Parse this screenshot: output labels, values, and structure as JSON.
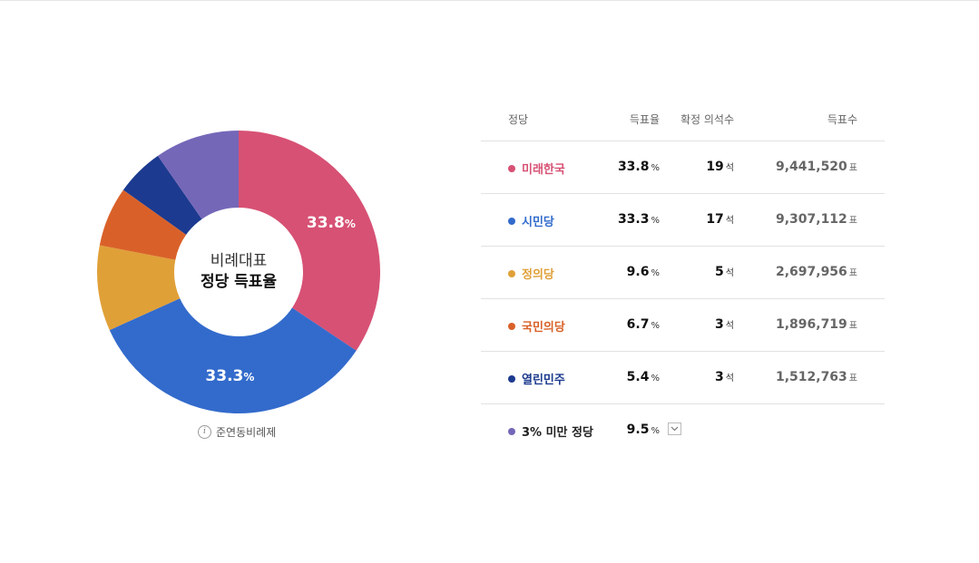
{
  "chart_data": {
    "type": "pie",
    "variant": "donut",
    "center_label": [
      "비례대표",
      "정당 득표율"
    ],
    "categories": [
      "미래한국",
      "시민당",
      "정의당",
      "국민의당",
      "열린민주",
      "3% 미만 정당"
    ],
    "values": [
      33.8,
      33.3,
      9.6,
      6.7,
      5.4,
      9.5
    ],
    "colors": [
      "#D75174",
      "#336BCC",
      "#E0A038",
      "#D96129",
      "#1C3A8F",
      "#7567B8"
    ],
    "slice_labels": [
      {
        "value": "33.8",
        "unit": "%"
      },
      {
        "value": "33.3",
        "unit": "%"
      },
      null,
      null,
      null,
      null
    ]
  },
  "note": {
    "icon": "info-icon",
    "text": "준연동비례제"
  },
  "table": {
    "headers": {
      "party": "정당",
      "rate": "득표율",
      "seats": "확정 의석수",
      "votes": "득표수"
    },
    "rows": [
      {
        "party": "미래한국",
        "color": "#D75174",
        "rate": "33.8",
        "rate_unit": "%",
        "seats": "19",
        "seats_unit": "석",
        "votes": "9,441,520",
        "votes_unit": "표"
      },
      {
        "party": "시민당",
        "color": "#336BCC",
        "rate": "33.3",
        "rate_unit": "%",
        "seats": "17",
        "seats_unit": "석",
        "votes": "9,307,112",
        "votes_unit": "표"
      },
      {
        "party": "정의당",
        "color": "#E0A038",
        "rate": "9.6",
        "rate_unit": "%",
        "seats": "5",
        "seats_unit": "석",
        "votes": "2,697,956",
        "votes_unit": "표"
      },
      {
        "party": "국민의당",
        "color": "#D96129",
        "rate": "6.7",
        "rate_unit": "%",
        "seats": "3",
        "seats_unit": "석",
        "votes": "1,896,719",
        "votes_unit": "표"
      },
      {
        "party": "열린민주",
        "color": "#1C3A8F",
        "rate": "5.4",
        "rate_unit": "%",
        "seats": "3",
        "seats_unit": "석",
        "votes": "1,512,763",
        "votes_unit": "표"
      }
    ],
    "others": {
      "party": "3% 미만 정당",
      "color": "#7567B8",
      "rate": "9.5",
      "rate_unit": "%",
      "expand_icon": "chevron-down-icon"
    }
  }
}
